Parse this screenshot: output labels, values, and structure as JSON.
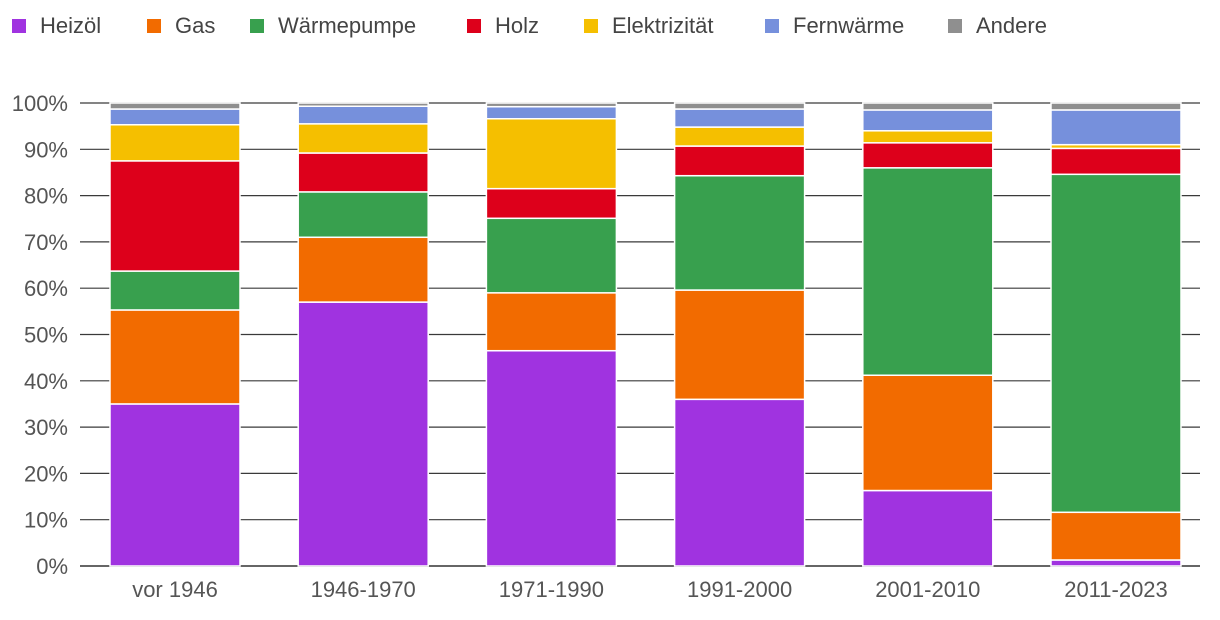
{
  "chart_data": {
    "type": "bar",
    "stacked": true,
    "normalized": true,
    "categories": [
      "vor 1946",
      "1946-1970",
      "1971-1990",
      "1991-2000",
      "2001-2010",
      "2011-2023"
    ],
    "series": [
      {
        "name": "Heizöl",
        "color": "#a033e0",
        "values": [
          35,
          57,
          46.5,
          36,
          16.3,
          1.3
        ]
      },
      {
        "name": "Gas",
        "color": "#f26b00",
        "values": [
          20.3,
          14,
          12.5,
          23.6,
          24.9,
          10.3
        ]
      },
      {
        "name": "Wärmepumpe",
        "color": "#38a04e",
        "values": [
          8.4,
          9.8,
          16.1,
          24.7,
          44.8,
          73
        ]
      },
      {
        "name": "Holz",
        "color": "#dd001b",
        "values": [
          23.8,
          8.4,
          6.4,
          6.4,
          5.4,
          5.6
        ]
      },
      {
        "name": "Elektrizität",
        "color": "#f5bf00",
        "values": [
          7.8,
          6.3,
          15.1,
          4.1,
          2.6,
          0.8
        ]
      },
      {
        "name": "Fernwärme",
        "color": "#7690dc",
        "values": [
          3.4,
          3.8,
          2.6,
          3.9,
          4.5,
          7.5
        ]
      },
      {
        "name": "Andere",
        "color": "#8f8f8f",
        "values": [
          1.3,
          0.7,
          0.8,
          1.3,
          1.5,
          1.5
        ]
      }
    ],
    "yticks": [
      "0%",
      "10%",
      "20%",
      "30%",
      "40%",
      "50%",
      "60%",
      "70%",
      "80%",
      "90%",
      "100%"
    ],
    "ylim": [
      0,
      100
    ],
    "legend_position": "top-left",
    "grid": true,
    "title": "",
    "xlabel": "",
    "ylabel": ""
  }
}
